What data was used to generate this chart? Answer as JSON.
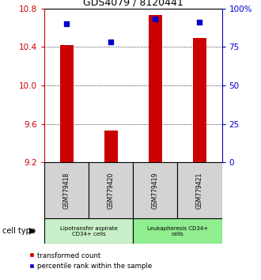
{
  "title": "GDS4079 / 8120441",
  "samples": [
    "GSM779418",
    "GSM779420",
    "GSM779419",
    "GSM779421"
  ],
  "red_values": [
    10.42,
    9.53,
    10.73,
    10.49
  ],
  "blue_values": [
    90,
    78,
    93,
    91
  ],
  "ylim_left": [
    9.2,
    10.8
  ],
  "ylim_right": [
    0,
    100
  ],
  "left_ticks": [
    9.2,
    9.6,
    10.0,
    10.4,
    10.8
  ],
  "right_ticks": [
    0,
    25,
    50,
    75,
    100
  ],
  "right_tick_labels": [
    "0",
    "25",
    "50",
    "75",
    "100%"
  ],
  "groups": [
    {
      "label": "Lipotransfer aspirate\nCD34+ cells",
      "start": 0,
      "end": 2,
      "color": "#c8f0c8"
    },
    {
      "label": "Leukapheresis CD34+\ncells",
      "start": 2,
      "end": 4,
      "color": "#90ee90"
    }
  ],
  "bar_color": "#cc0000",
  "dot_color": "#0000cc",
  "bar_width": 0.3,
  "legend_red": "transformed count",
  "legend_blue": "percentile rank within the sample",
  "cell_type_label": "cell type"
}
